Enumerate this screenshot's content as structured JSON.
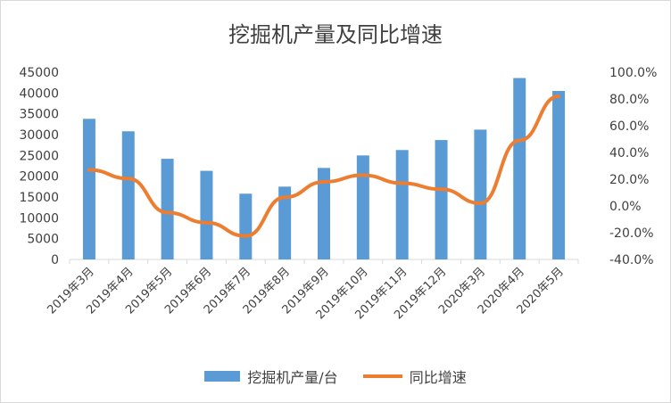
{
  "chart_data": {
    "type": "bar",
    "title": "挖掘机产量及同比增速",
    "categories": [
      "2019年3月",
      "2019年4月",
      "2019年5月",
      "2019年6月",
      "2019年7月",
      "2019年8月",
      "2019年9月",
      "2019年10月",
      "2019年11月",
      "2019年12月",
      "2020年3月",
      "2020年4月",
      "2020年5月"
    ],
    "series": [
      {
        "name": "挖掘机产量/台",
        "kind": "bar",
        "axis": "left",
        "color": "#5b9bd5",
        "values": [
          33800,
          30800,
          24200,
          21300,
          15800,
          17500,
          22000,
          25000,
          26300,
          28700,
          31200,
          43600,
          40500
        ]
      },
      {
        "name": "同比增速",
        "kind": "line",
        "axis": "right",
        "color": "#ed7d31",
        "values": [
          27.0,
          20.5,
          -5.0,
          -12.5,
          -22.5,
          6.5,
          18.0,
          23.0,
          17.0,
          12.5,
          2.0,
          49.0,
          82.0
        ]
      }
    ],
    "y_left": {
      "min": 0,
      "max": 45000,
      "step": 5000,
      "ticks": [
        "0",
        "5000",
        "10000",
        "15000",
        "20000",
        "25000",
        "30000",
        "35000",
        "40000",
        "45000"
      ]
    },
    "y_right": {
      "min": -40,
      "max": 100,
      "step": 20,
      "ticks": [
        "-40.0%",
        "-20.0%",
        "0.0%",
        "20.0%",
        "40.0%",
        "60.0%",
        "80.0%",
        "100.0%"
      ]
    },
    "grid": false,
    "legend": "bottom"
  }
}
